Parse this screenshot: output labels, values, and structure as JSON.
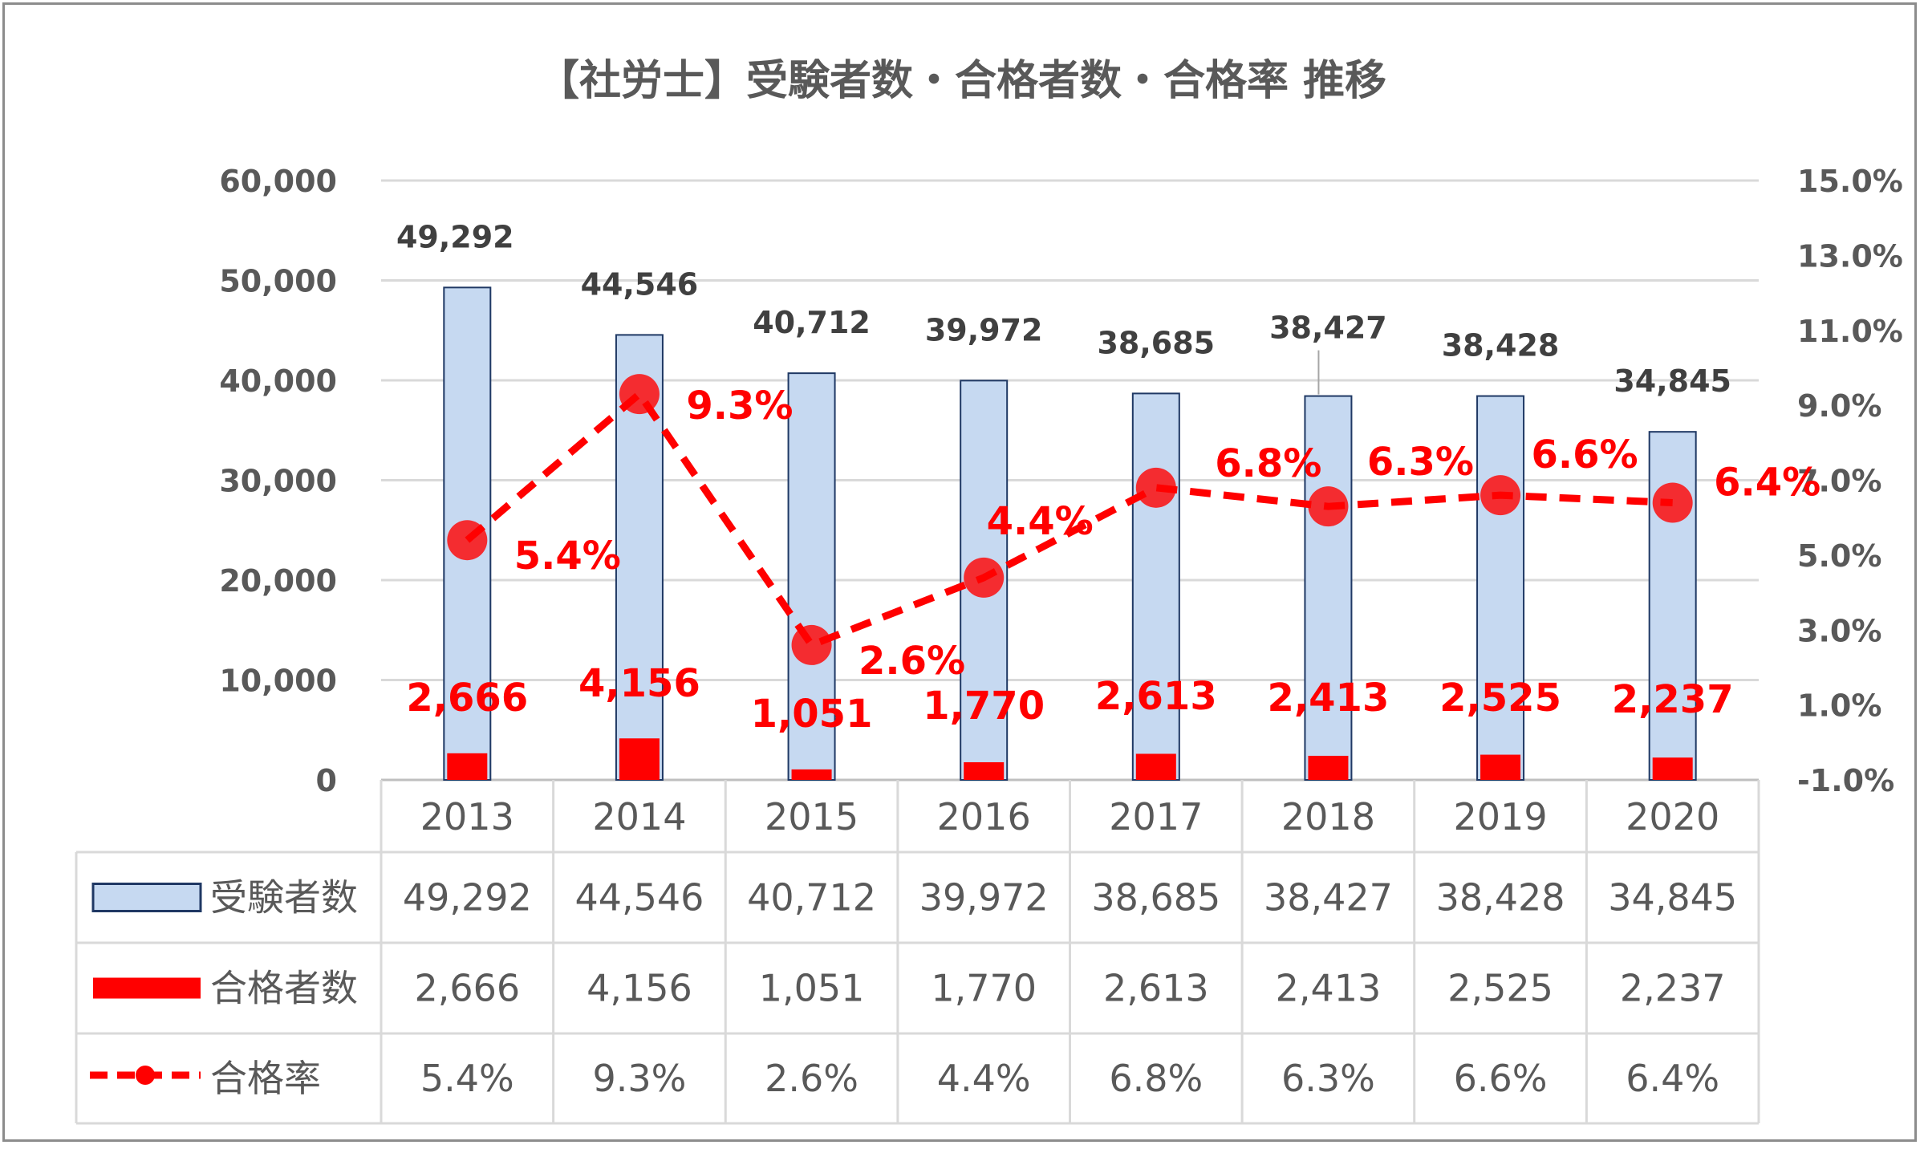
{
  "chart_data": {
    "type": "bar",
    "title": "【社労士】受験者数・合格者数・合格率 推移",
    "categories": [
      "2013",
      "2014",
      "2015",
      "2016",
      "2017",
      "2018",
      "2019",
      "2020"
    ],
    "series": [
      {
        "name": "受験者数",
        "kind": "bar",
        "axis": "left",
        "color": "#c6d9f1",
        "border": "#1f3864",
        "values": [
          49292,
          44546,
          40712,
          39972,
          38685,
          38427,
          38428,
          34845
        ],
        "labels": [
          "49,292",
          "44,546",
          "40,712",
          "39,972",
          "38,685",
          "38,427",
          "38,428",
          "34,845"
        ]
      },
      {
        "name": "合格者数",
        "kind": "bar",
        "axis": "left",
        "color": "#ff0000",
        "values": [
          2666,
          4156,
          1051,
          1770,
          2613,
          2413,
          2525,
          2237
        ],
        "labels": [
          "2,666",
          "4,156",
          "1,051",
          "1,770",
          "2,613",
          "2,413",
          "2,525",
          "2,237"
        ]
      },
      {
        "name": "合格率",
        "kind": "line",
        "axis": "right",
        "color": "#ff0000",
        "dashed": true,
        "values": [
          5.4,
          9.3,
          2.6,
          4.4,
          6.8,
          6.3,
          6.6,
          6.4
        ],
        "labels": [
          "5.4%",
          "9.3%",
          "2.6%",
          "4.4%",
          "6.8%",
          "6.3%",
          "6.6%",
          "6.4%"
        ]
      }
    ],
    "ylim_left": [
      0,
      60000
    ],
    "ylim_right": [
      -1.0,
      15.0
    ],
    "yticks_left": [
      "0",
      "10,000",
      "20,000",
      "30,000",
      "40,000",
      "50,000",
      "60,000"
    ],
    "yticks_right": [
      "-1.0%",
      "1.0%",
      "3.0%",
      "5.0%",
      "7.0%",
      "9.0%",
      "11.0%",
      "13.0%",
      "15.0%"
    ],
    "grid": true,
    "legend": "data-table",
    "data_table": true
  }
}
